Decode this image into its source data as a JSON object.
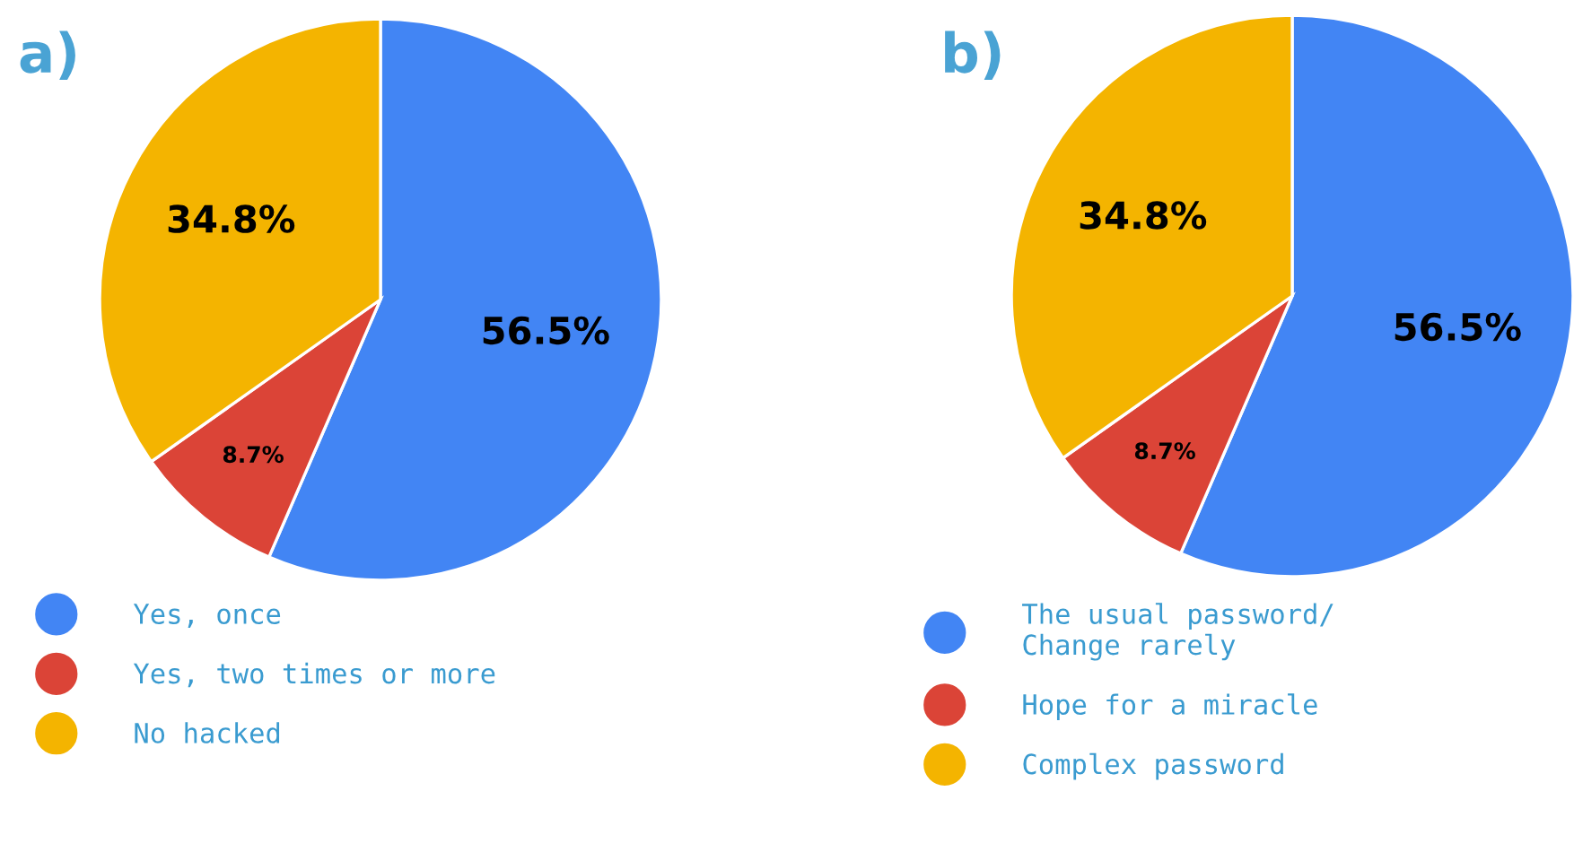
{
  "chart_data": [
    {
      "type": "pie",
      "title": "a)",
      "categories": [
        "Yes, once",
        "Yes, two times or more",
        "No hacked"
      ],
      "values": [
        56.5,
        8.7,
        34.8
      ],
      "colors": [
        "#4285f4",
        "#db4437",
        "#f4b400"
      ],
      "value_labels": [
        "56.5%",
        "8.7%",
        "34.8%"
      ],
      "legend": "bottom"
    },
    {
      "type": "pie",
      "title": "b)",
      "categories": [
        "The usual password/\nChange rarely",
        "Hope for a miracle",
        "Complex password"
      ],
      "values": [
        56.5,
        8.7,
        34.8
      ],
      "colors": [
        "#4285f4",
        "#db4437",
        "#f4b400"
      ],
      "value_labels": [
        "56.5%",
        "8.7%",
        "34.8%"
      ],
      "legend": "bottom"
    }
  ]
}
